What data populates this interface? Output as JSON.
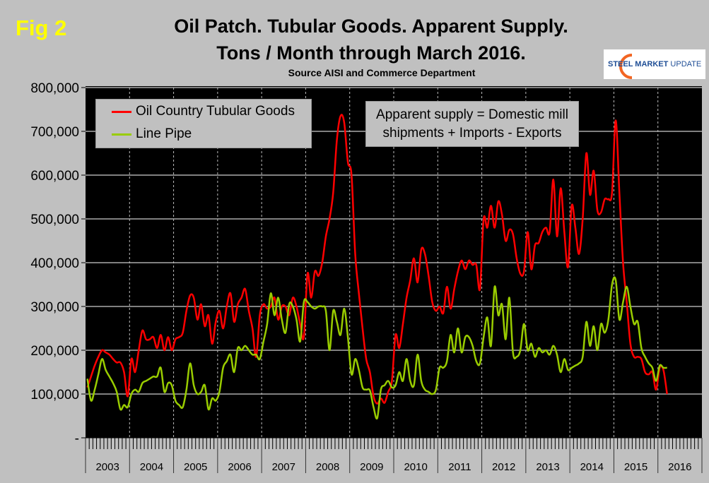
{
  "figure_label": "Fig 2",
  "logo": {
    "text_bold": "STEEL MARKET",
    "text_light": " UPDATE"
  },
  "chart_data": {
    "type": "line",
    "title_line1": "Oil Patch. Tubular Goods. Apparent Supply.",
    "title_line2": "Tons / Month through March 2016.",
    "subtitle": "Source AISI and Commerce Department",
    "annotation_line1": "Apparent supply = Domestic mill",
    "annotation_line2": "shipments + Imports - Exports",
    "x_start": "2003-01",
    "x_end": "2016-03",
    "x_frequency": "monthly",
    "x_tick_labels": [
      "2003",
      "2004",
      "2005",
      "2006",
      "2007",
      "2008",
      "2009",
      "2010",
      "2011",
      "2012",
      "2013",
      "2014",
      "2015",
      "2016"
    ],
    "ylim": [
      0,
      800000
    ],
    "y_tick_labels": [
      "-",
      "100,000",
      "200,000",
      "300,000",
      "400,000",
      "500,000",
      "600,000",
      "700,000",
      "800,000"
    ],
    "y_ticks": [
      0,
      100000,
      200000,
      300000,
      400000,
      500000,
      600000,
      700000,
      800000
    ],
    "grid": {
      "horizontal": "solid",
      "vertical": "dotted-at-year"
    },
    "legend_placement": "top-left",
    "background": "#000000",
    "series": [
      {
        "name": "Oil Country Tubular Goods",
        "color": "#ff0000",
        "unit": "thousand tons",
        "values": [
          115,
          140,
          165,
          185,
          200,
          195,
          190,
          180,
          172,
          172,
          150,
          95,
          180,
          150,
          200,
          245,
          225,
          225,
          230,
          205,
          235,
          200,
          230,
          200,
          225,
          230,
          240,
          290,
          325,
          320,
          270,
          305,
          255,
          280,
          215,
          265,
          290,
          250,
          300,
          330,
          265,
          305,
          320,
          340,
          290,
          250,
          185,
          280,
          305,
          295,
          300,
          320,
          270,
          300,
          300,
          280,
          320,
          300,
          260,
          230,
          375,
          320,
          380,
          370,
          400,
          460,
          500,
          560,
          680,
          735,
          720,
          630,
          600,
          420,
          330,
          250,
          180,
          150,
          95,
          78,
          90,
          80,
          105,
          130,
          235,
          205,
          260,
          320,
          360,
          410,
          355,
          430,
          420,
          370,
          310,
          290,
          300,
          285,
          345,
          295,
          340,
          380,
          405,
          385,
          405,
          395,
          395,
          340,
          500,
          480,
          530,
          480,
          540,
          510,
          450,
          475,
          465,
          410,
          375,
          380,
          470,
          385,
          440,
          445,
          470,
          480,
          470,
          590,
          460,
          570,
          470,
          390,
          530,
          480,
          420,
          500,
          650,
          555,
          610,
          520,
          515,
          545,
          545,
          560,
          725,
          560,
          400,
          310,
          215,
          185,
          185,
          180,
          150,
          145,
          150,
          110,
          160,
          155,
          100
        ]
      },
      {
        "name": "Line Pipe",
        "color": "#99cc00",
        "unit": "thousand tons",
        "values": [
          135,
          85,
          110,
          145,
          180,
          155,
          140,
          125,
          105,
          65,
          75,
          70,
          100,
          110,
          105,
          125,
          130,
          135,
          140,
          140,
          160,
          105,
          125,
          120,
          85,
          75,
          70,
          110,
          170,
          120,
          100,
          105,
          120,
          65,
          90,
          85,
          105,
          160,
          175,
          190,
          150,
          205,
          200,
          210,
          200,
          190,
          190,
          180,
          220,
          260,
          330,
          280,
          320,
          270,
          240,
          305,
          300,
          270,
          220,
          310,
          310,
          300,
          295,
          300,
          300,
          290,
          200,
          290,
          265,
          235,
          295,
          230,
          145,
          180,
          155,
          115,
          110,
          108,
          70,
          45,
          110,
          120,
          130,
          115,
          120,
          150,
          130,
          180,
          130,
          120,
          190,
          130,
          110,
          105,
          100,
          110,
          160,
          160,
          175,
          235,
          195,
          250,
          195,
          230,
          230,
          210,
          175,
          170,
          230,
          275,
          210,
          345,
          280,
          305,
          225,
          320,
          195,
          185,
          200,
          260,
          200,
          215,
          185,
          205,
          195,
          200,
          190,
          210,
          190,
          150,
          180,
          155,
          160,
          165,
          170,
          185,
          265,
          210,
          255,
          200,
          260,
          240,
          270,
          350,
          360,
          270,
          310,
          345,
          300,
          260,
          265,
          205,
          185,
          170,
          160,
          130,
          165,
          160,
          160
        ]
      }
    ]
  }
}
